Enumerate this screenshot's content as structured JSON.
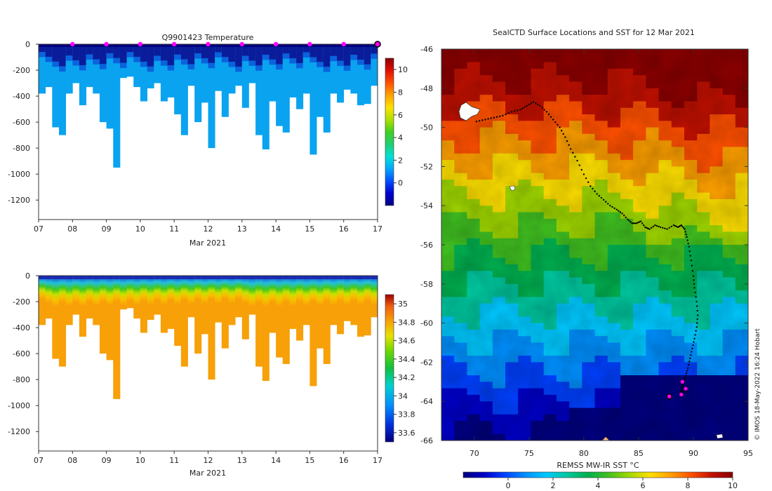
{
  "colors": {
    "temp_scale": [
      "#00007f",
      "#0000d0",
      "#0050ff",
      "#00a8ff",
      "#00e0d8",
      "#20d070",
      "#40d020",
      "#b0e000",
      "#ffe000",
      "#ffa000",
      "#ff5000",
      "#e01000",
      "#8b0000"
    ],
    "map_scale": [
      "#00007f",
      "#0000c8",
      "#0040ff",
      "#0090ff",
      "#00c8ff",
      "#00c8a0",
      "#00b050",
      "#40c020",
      "#a0d800",
      "#ffe000",
      "#ffa000",
      "#ff5000",
      "#c01000",
      "#8b0000"
    ],
    "profile_deep": "#0aa3f0",
    "profile_surface": "#0a1c9a",
    "sal_deep": "#f7a008",
    "marker": "#ff00ff",
    "track": "#000000",
    "land": "#ffffff"
  },
  "chart_data": [
    {
      "type": "heatmap",
      "title": "Q9901423  Temperature",
      "variable": "temperature",
      "xlabel": "Mar 2021",
      "x_ticks": [
        "07",
        "08",
        "09",
        "10",
        "11",
        "12",
        "13",
        "14",
        "15",
        "16",
        "17"
      ],
      "xlim": [
        7,
        17
      ],
      "ylim": [
        -1350,
        0
      ],
      "y_ticks": [
        0,
        -200,
        -400,
        -600,
        -800,
        -1000,
        -1200
      ],
      "colorbar": {
        "range": [
          -2,
          11
        ],
        "ticks": [
          10,
          8,
          6,
          4,
          2,
          0
        ]
      },
      "marker_days": [
        8,
        9,
        10,
        11,
        12,
        13,
        14,
        15,
        16
      ],
      "end_marker_day": 17,
      "profiles": {
        "days": [
          7.0,
          7.2,
          7.4,
          7.6,
          7.8,
          8.0,
          8.2,
          8.4,
          8.6,
          8.8,
          9.0,
          9.2,
          9.4,
          9.6,
          9.8,
          10.0,
          10.2,
          10.4,
          10.6,
          10.8,
          11.0,
          11.2,
          11.4,
          11.6,
          11.8,
          12.0,
          12.2,
          12.4,
          12.6,
          12.8,
          13.0,
          13.2,
          13.4,
          13.6,
          13.8,
          14.0,
          14.2,
          14.4,
          14.6,
          14.8,
          15.0,
          15.2,
          15.4,
          15.6,
          15.8,
          16.0,
          16.2,
          16.4,
          16.6,
          16.8
        ],
        "max_depth": [
          380,
          330,
          640,
          700,
          380,
          300,
          470,
          330,
          380,
          600,
          650,
          950,
          260,
          250,
          330,
          440,
          340,
          300,
          440,
          410,
          540,
          700,
          320,
          600,
          450,
          800,
          360,
          560,
          380,
          320,
          490,
          300,
          700,
          810,
          440,
          630,
          680,
          410,
          500,
          380,
          850,
          560,
          680,
          380,
          450,
          350,
          380,
          470,
          460,
          320
        ]
      }
    },
    {
      "type": "heatmap",
      "title": "",
      "variable": "salinity",
      "xlabel": "Mar 2021",
      "x_ticks": [
        "07",
        "08",
        "09",
        "10",
        "11",
        "12",
        "13",
        "14",
        "15",
        "16",
        "17"
      ],
      "xlim": [
        7,
        17
      ],
      "ylim": [
        -1350,
        0
      ],
      "y_ticks": [
        0,
        -200,
        -400,
        -600,
        -800,
        -1000,
        -1200
      ],
      "colorbar": {
        "range": [
          33.5,
          35.1
        ],
        "ticks": [
          "35",
          "34.8",
          "34.6",
          "34.4",
          "34.2",
          "34",
          "33.8",
          "33.6"
        ]
      }
    },
    {
      "type": "heatmap",
      "title": "SealCTD Surface Locations and SST for 12 Mar 2021",
      "variable": "sst_map",
      "x_ticks": [
        "70",
        "75",
        "80",
        "85",
        "90",
        "95"
      ],
      "x_tick_values": [
        70,
        75,
        80,
        85,
        90,
        95
      ],
      "xlim": [
        67,
        95
      ],
      "y_ticks": [
        "-46",
        "-48",
        "-50",
        "-52",
        "-54",
        "-56",
        "-58",
        "-60",
        "-62",
        "-64",
        "-66"
      ],
      "y_tick_values": [
        -46,
        -48,
        -50,
        -52,
        -54,
        -56,
        -58,
        -60,
        -62,
        -64,
        -66
      ],
      "ylim": [
        -66,
        -46
      ],
      "colorbar_label": "REMSS MW-IR SST °C",
      "colorbar": {
        "range": [
          -2,
          10
        ],
        "ticks": [
          "0",
          "2",
          "4",
          "6",
          "8",
          "10"
        ],
        "tick_values": [
          0,
          2,
          4,
          6,
          8,
          10
        ]
      },
      "track": {
        "lon": [
          70.2,
          71.0,
          71.8,
          72.6,
          73.4,
          74.2,
          74.8,
          75.4,
          76.0,
          76.6,
          77.2,
          77.8,
          78.3,
          78.8,
          79.4,
          80.0,
          80.6,
          81.2,
          81.8,
          82.4,
          83.0,
          83.5,
          84.0,
          84.4,
          84.8,
          85.2,
          85.6,
          86.0,
          86.5,
          87.0,
          87.6,
          88.2,
          88.6,
          88.9,
          89.2,
          89.4,
          89.6,
          89.8,
          90.0,
          90.1,
          90.3,
          90.4,
          90.3,
          90.1,
          89.9,
          89.7,
          89.5,
          89.3,
          89.1,
          89.0,
          88.9,
          88.8,
          89.0,
          89.2
        ],
        "lat": [
          -49.7,
          -49.6,
          -49.5,
          -49.4,
          -49.2,
          -49.1,
          -48.9,
          -48.7,
          -48.9,
          -49.2,
          -49.6,
          -50.0,
          -50.5,
          -51.1,
          -51.7,
          -52.4,
          -53.0,
          -53.4,
          -53.7,
          -54.0,
          -54.2,
          -54.4,
          -54.7,
          -54.9,
          -54.9,
          -54.8,
          -55.1,
          -55.2,
          -55.0,
          -55.1,
          -55.2,
          -55.0,
          -55.1,
          -55.0,
          -55.2,
          -55.6,
          -56.1,
          -56.8,
          -57.6,
          -58.2,
          -58.9,
          -59.6,
          -60.2,
          -60.8,
          -61.3,
          -61.8,
          -62.3,
          -62.7,
          -63.0,
          -63.3,
          -63.5,
          -63.6,
          -63.7,
          -63.4
        ]
      },
      "float_markers": [
        {
          "lon": 88.9,
          "lat": -63.65
        },
        {
          "lon": 89.3,
          "lat": -63.35
        },
        {
          "lon": 89.0,
          "lat": -63.0
        }
      ],
      "current_position": {
        "lon": 87.8,
        "lat": -63.75
      },
      "start_marker": {
        "lon": 82.0,
        "lat": -66.0
      }
    }
  ],
  "credit": "© IMOS 18-May-2022 16:24 Hobart"
}
